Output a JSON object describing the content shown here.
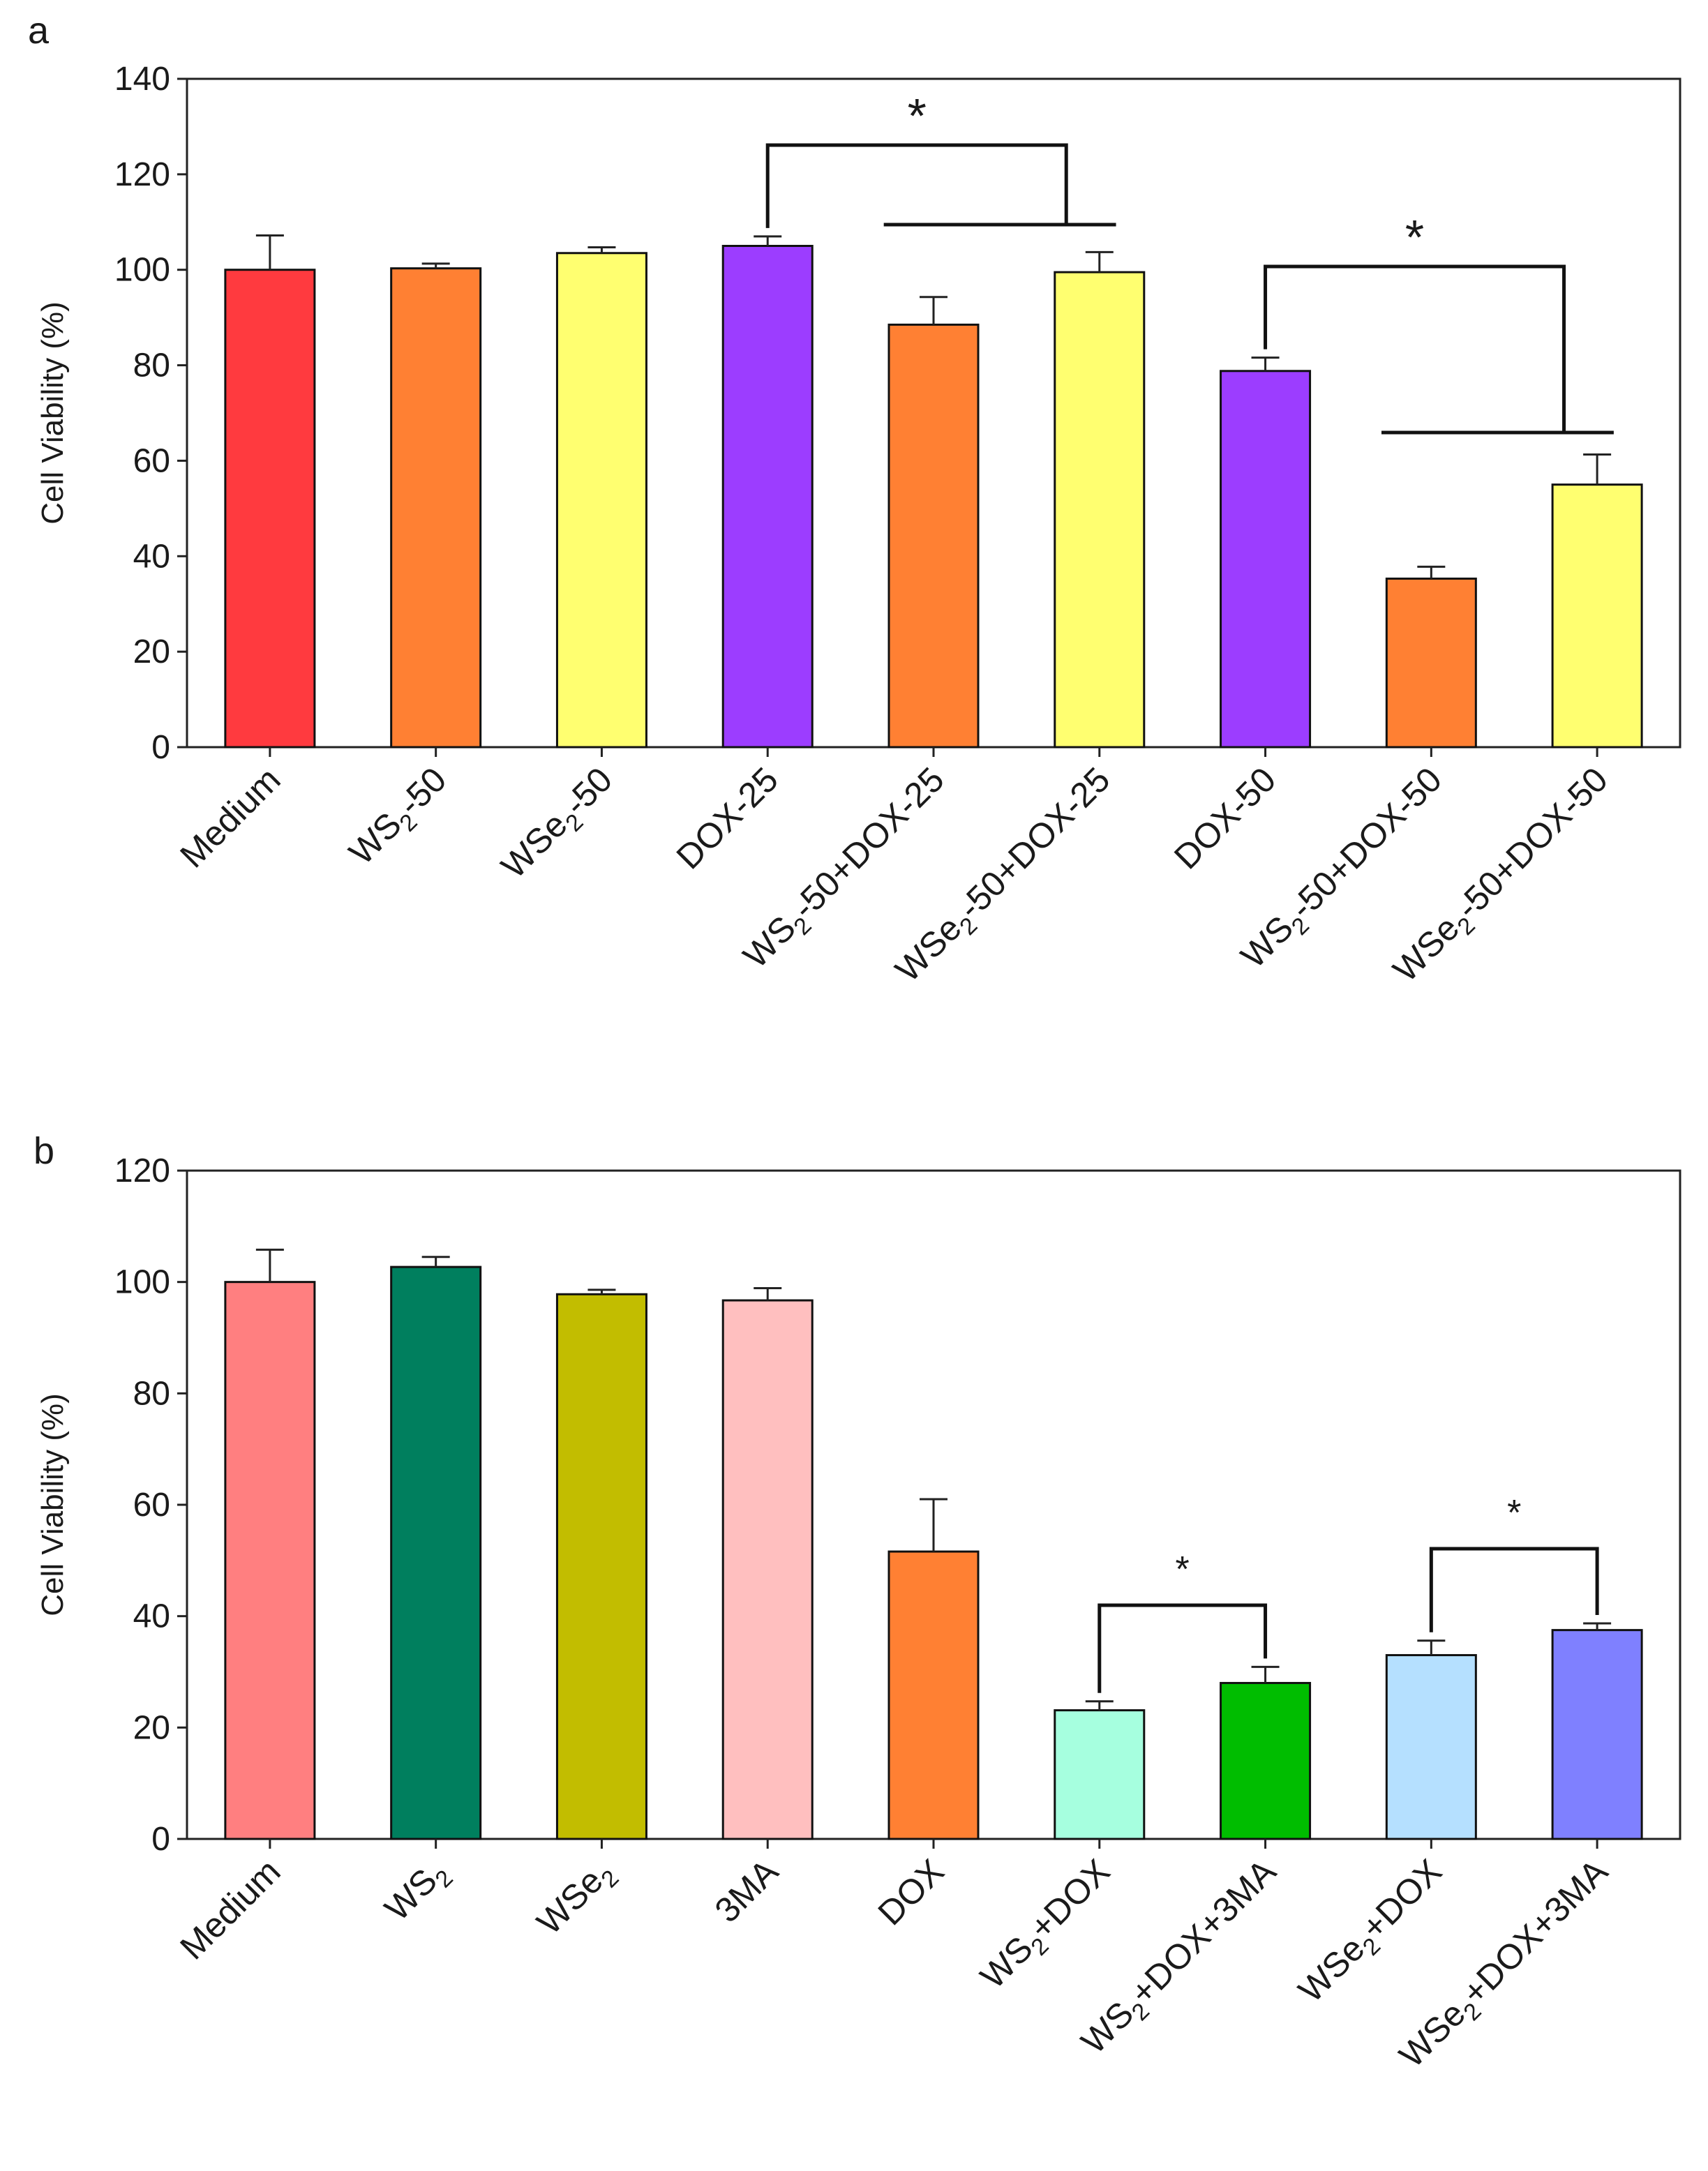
{
  "chart_data": [
    {
      "panel": "a",
      "type": "bar",
      "ylabel": "Cell Viability (%)",
      "ylim": [
        0,
        140
      ],
      "yticks": [
        0,
        20,
        40,
        60,
        80,
        100,
        120,
        140
      ],
      "categories": [
        {
          "pre": "Medium",
          "sub": "",
          "post": ""
        },
        {
          "pre": "WS",
          "sub": "2",
          "post": "-50"
        },
        {
          "pre": "WSe",
          "sub": "2",
          "post": "-50"
        },
        {
          "pre": "DOX-25",
          "sub": "",
          "post": ""
        },
        {
          "pre": "WS",
          "sub": "2",
          "post": "-50+DOX-25"
        },
        {
          "pre": "WSe",
          "sub": "2",
          "post": "-50+DOX-25"
        },
        {
          "pre": "DOX-50",
          "sub": "",
          "post": ""
        },
        {
          "pre": "WS",
          "sub": "2",
          "post": "-50+DOX-50"
        },
        {
          "pre": "WSe",
          "sub": "2",
          "post": "-50+DOX-50"
        }
      ],
      "values": [
        100,
        100.3,
        103.5,
        105,
        88.5,
        99.5,
        78.8,
        35.3,
        55
      ],
      "errors": [
        7.2,
        1.0,
        1.2,
        2.0,
        5.8,
        4.2,
        2.8,
        2.5,
        6.3
      ],
      "colors": [
        "#ff3a3f",
        "#ff8033",
        "#ffff70",
        "#9c3dff",
        "#ff8033",
        "#ffff70",
        "#9c3dff",
        "#ff8033",
        "#ffff70"
      ],
      "significance": [
        {
          "ref": 3,
          "targets": [
            4,
            5
          ],
          "label": "*"
        },
        {
          "ref": 6,
          "targets": [
            7,
            8
          ],
          "label": "*"
        }
      ]
    },
    {
      "panel": "b",
      "type": "bar",
      "ylabel": "Cell Viability (%)",
      "ylim": [
        0,
        120
      ],
      "yticks": [
        0,
        20,
        40,
        60,
        80,
        100,
        120
      ],
      "categories": [
        {
          "pre": "Medium",
          "sub": "",
          "post": ""
        },
        {
          "pre": "WS",
          "sub": "2",
          "post": ""
        },
        {
          "pre": "WSe",
          "sub": "2",
          "post": ""
        },
        {
          "pre": "3MA",
          "sub": "",
          "post": ""
        },
        {
          "pre": "DOX",
          "sub": "",
          "post": ""
        },
        {
          "pre": "WS",
          "sub": "2",
          "post": "+DOX"
        },
        {
          "pre": "WS",
          "sub": "2",
          "post": "+DOX+3MA"
        },
        {
          "pre": "WSe",
          "sub": "2",
          "post": "+DOX"
        },
        {
          "pre": "WSe",
          "sub": "2",
          "post": "+DOX+3MA"
        }
      ],
      "values": [
        100,
        102.7,
        97.8,
        96.7,
        51.6,
        23.1,
        28.0,
        33.0,
        37.5
      ],
      "errors": [
        5.8,
        1.8,
        0.8,
        2.2,
        9.4,
        1.6,
        2.9,
        2.6,
        1.2
      ],
      "colors": [
        "#ff7f80",
        "#007f5e",
        "#c2bd00",
        "#ffbfbf",
        "#ff8033",
        "#a6ffdf",
        "#00bd00",
        "#b5e0ff",
        "#7f80ff"
      ],
      "significance": [
        {
          "ref": 5,
          "targets": [
            6
          ],
          "label": "*"
        },
        {
          "ref": 7,
          "targets": [
            8
          ],
          "label": "*"
        }
      ]
    }
  ]
}
